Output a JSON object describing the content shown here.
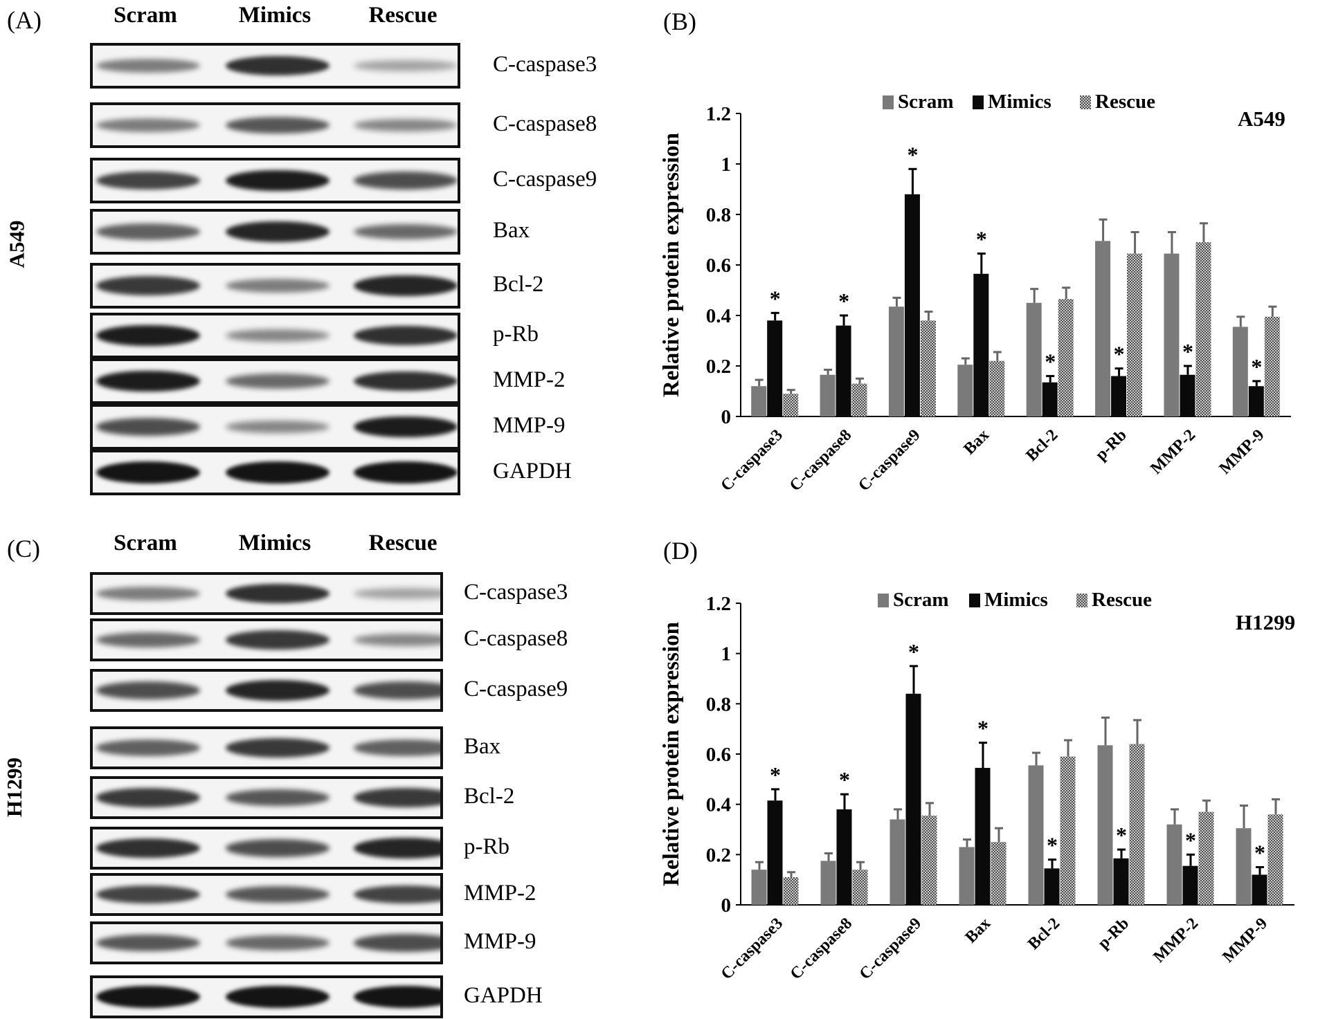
{
  "figure": {
    "panelA": {
      "letter": "(A)",
      "cell_line": "A549",
      "columns": [
        "Scram",
        "Mimics",
        "Rescue"
      ],
      "rows": [
        {
          "label": "C-caspase3",
          "intensity": [
            0.45,
            0.85,
            0.25
          ]
        },
        {
          "label": "C-caspase8",
          "intensity": [
            0.45,
            0.65,
            0.4
          ]
        },
        {
          "label": "C-caspase9",
          "intensity": [
            0.75,
            0.95,
            0.7
          ]
        },
        {
          "label": "Bax",
          "intensity": [
            0.6,
            0.9,
            0.55
          ]
        },
        {
          "label": "Bcl-2",
          "intensity": [
            0.8,
            0.45,
            0.9
          ]
        },
        {
          "label": "p-Rb",
          "intensity": [
            0.95,
            0.4,
            0.85
          ]
        },
        {
          "label": "MMP-2",
          "intensity": [
            0.95,
            0.55,
            0.85
          ]
        },
        {
          "label": "MMP-9",
          "intensity": [
            0.7,
            0.4,
            0.95
          ]
        },
        {
          "label": "GAPDH",
          "intensity": [
            1.0,
            1.0,
            1.0
          ]
        }
      ]
    },
    "panelC": {
      "letter": "(C)",
      "cell_line": "H1299",
      "columns": [
        "Scram",
        "Mimics",
        "Rescue"
      ],
      "rows": [
        {
          "label": "C-caspase3",
          "intensity": [
            0.45,
            0.85,
            0.25
          ]
        },
        {
          "label": "C-caspase8",
          "intensity": [
            0.55,
            0.8,
            0.4
          ]
        },
        {
          "label": "C-caspase9",
          "intensity": [
            0.7,
            0.9,
            0.7
          ]
        },
        {
          "label": "Bax",
          "intensity": [
            0.6,
            0.8,
            0.6
          ]
        },
        {
          "label": "Bcl-2",
          "intensity": [
            0.8,
            0.65,
            0.8
          ]
        },
        {
          "label": "p-Rb",
          "intensity": [
            0.85,
            0.7,
            0.9
          ]
        },
        {
          "label": "MMP-2",
          "intensity": [
            0.75,
            0.65,
            0.75
          ]
        },
        {
          "label": "MMP-9",
          "intensity": [
            0.65,
            0.55,
            0.7
          ]
        },
        {
          "label": "GAPDH",
          "intensity": [
            1.0,
            1.0,
            1.0
          ]
        }
      ]
    },
    "panelB": {
      "letter": "(B)"
    },
    "panelD": {
      "letter": "(D)"
    }
  },
  "colors": {
    "scram": "#7a7a7a",
    "mimics": "#0a0a0a",
    "rescue": "#9c9c9c",
    "band": "#141414"
  },
  "chart_data": [
    {
      "type": "bar",
      "cell_line": "A549",
      "ylabel": "Relative protein expression",
      "ylim": [
        0,
        1.2
      ],
      "yticks": [
        "0",
        "0.2",
        "0.4",
        "0.6",
        "0.8",
        "1",
        "1.2"
      ],
      "legend": [
        "Scram",
        "Mimics",
        "Rescue"
      ],
      "legend_position": "top",
      "categories": [
        "C-caspase3",
        "C-caspase8",
        "C-caspase9",
        "Bax",
        "Bcl-2",
        "p-Rb",
        "MMP-2",
        "MMP-9"
      ],
      "series": [
        {
          "name": "Scram",
          "values": [
            0.12,
            0.165,
            0.435,
            0.205,
            0.45,
            0.695,
            0.645,
            0.355
          ],
          "errors": [
            0.025,
            0.02,
            0.035,
            0.025,
            0.055,
            0.085,
            0.085,
            0.04
          ]
        },
        {
          "name": "Mimics",
          "values": [
            0.38,
            0.36,
            0.88,
            0.565,
            0.135,
            0.16,
            0.165,
            0.12
          ],
          "errors": [
            0.03,
            0.04,
            0.1,
            0.08,
            0.025,
            0.03,
            0.035,
            0.02
          ]
        },
        {
          "name": "Rescue",
          "values": [
            0.09,
            0.13,
            0.38,
            0.22,
            0.465,
            0.645,
            0.69,
            0.395
          ],
          "errors": [
            0.015,
            0.02,
            0.035,
            0.035,
            0.045,
            0.085,
            0.075,
            0.04
          ]
        }
      ],
      "significance": [
        {
          "category": "C-caspase3",
          "series": "Mimics",
          "mark": "*"
        },
        {
          "category": "C-caspase8",
          "series": "Mimics",
          "mark": "*"
        },
        {
          "category": "C-caspase9",
          "series": "Mimics",
          "mark": "*"
        },
        {
          "category": "Bax",
          "series": "Mimics",
          "mark": "*"
        },
        {
          "category": "Bcl-2",
          "series": "Mimics",
          "mark": "*"
        },
        {
          "category": "p-Rb",
          "series": "Mimics",
          "mark": "*"
        },
        {
          "category": "MMP-2",
          "series": "Mimics",
          "mark": "*"
        },
        {
          "category": "MMP-9",
          "series": "Mimics",
          "mark": "*"
        }
      ]
    },
    {
      "type": "bar",
      "cell_line": "H1299",
      "ylabel": "Relative protein expression",
      "ylim": [
        0,
        1.2
      ],
      "yticks": [
        "0",
        "0.2",
        "0.4",
        "0.6",
        "0.8",
        "1",
        "1.2"
      ],
      "legend": [
        "Scram",
        "Mimics",
        "Rescue"
      ],
      "legend_position": "top",
      "categories": [
        "C-caspase3",
        "C-caspase8",
        "C-caspase9",
        "Bax",
        "Bcl-2",
        "p-Rb",
        "MMP-2",
        "MMP-9"
      ],
      "series": [
        {
          "name": "Scram",
          "values": [
            0.14,
            0.175,
            0.34,
            0.23,
            0.555,
            0.635,
            0.32,
            0.305
          ],
          "errors": [
            0.03,
            0.03,
            0.04,
            0.03,
            0.05,
            0.11,
            0.06,
            0.09
          ]
        },
        {
          "name": "Mimics",
          "values": [
            0.415,
            0.38,
            0.84,
            0.545,
            0.145,
            0.185,
            0.155,
            0.12
          ],
          "errors": [
            0.045,
            0.06,
            0.11,
            0.1,
            0.035,
            0.035,
            0.045,
            0.03
          ]
        },
        {
          "name": "Rescue",
          "values": [
            0.11,
            0.14,
            0.355,
            0.25,
            0.59,
            0.64,
            0.37,
            0.36
          ],
          "errors": [
            0.02,
            0.03,
            0.05,
            0.055,
            0.065,
            0.095,
            0.045,
            0.06
          ]
        }
      ],
      "significance": [
        {
          "category": "C-caspase3",
          "series": "Mimics",
          "mark": "*"
        },
        {
          "category": "C-caspase8",
          "series": "Mimics",
          "mark": "*"
        },
        {
          "category": "C-caspase9",
          "series": "Mimics",
          "mark": "*"
        },
        {
          "category": "Bax",
          "series": "Mimics",
          "mark": "*"
        },
        {
          "category": "Bcl-2",
          "series": "Mimics",
          "mark": "*"
        },
        {
          "category": "p-Rb",
          "series": "Mimics",
          "mark": "*"
        },
        {
          "category": "MMP-2",
          "series": "Mimics",
          "mark": "*"
        },
        {
          "category": "MMP-9",
          "series": "Mimics",
          "mark": "*"
        }
      ]
    }
  ]
}
